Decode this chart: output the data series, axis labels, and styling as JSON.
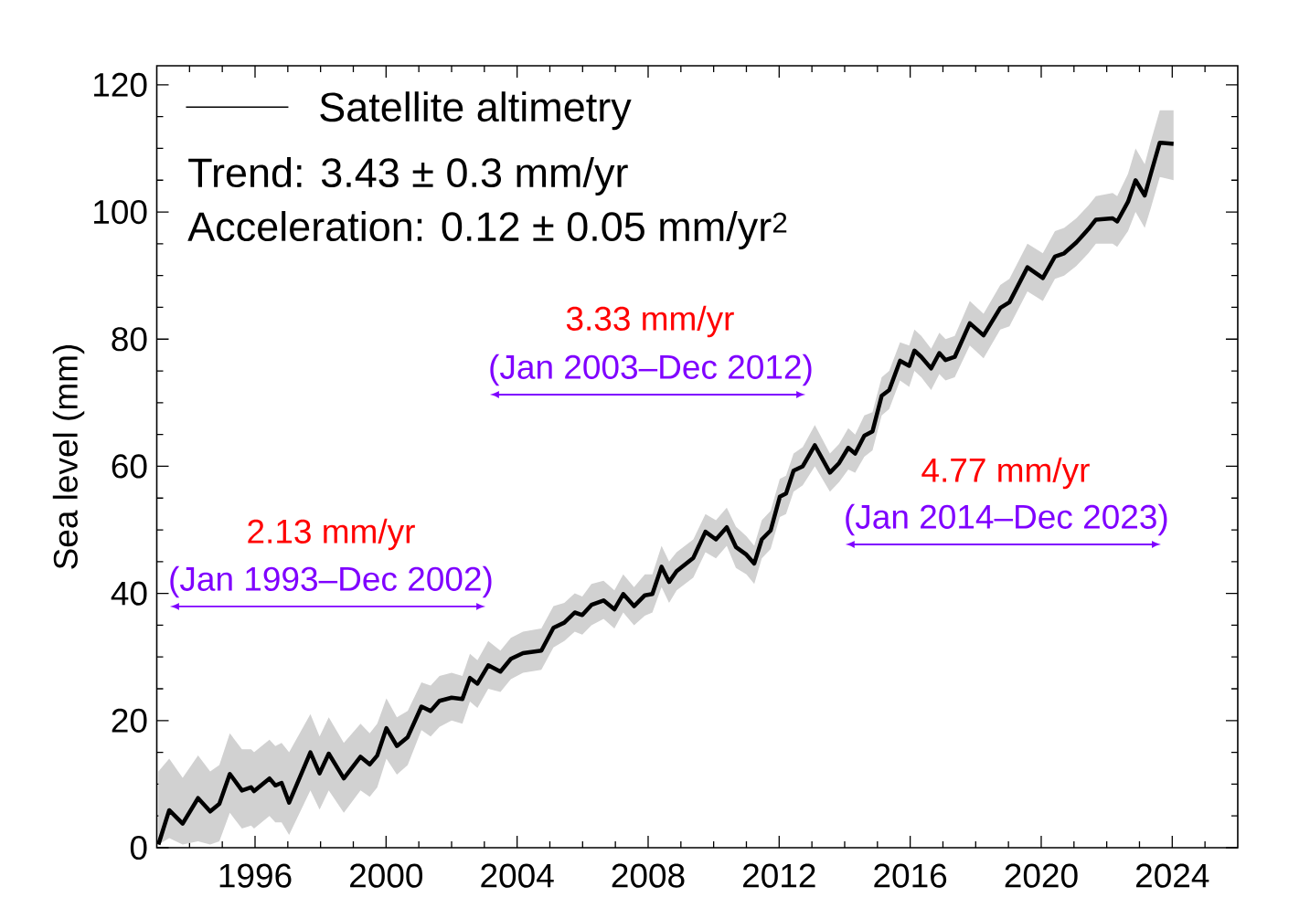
{
  "chart_data": {
    "type": "line",
    "ylabel": "Sea level (mm)",
    "legend": "top left",
    "marker": "none",
    "line_style": "solid",
    "xlim": [
      1993,
      2026
    ],
    "ylim": [
      0,
      123
    ],
    "xticks": [
      {
        "value": 1994,
        "label": null
      },
      {
        "value": 1995,
        "label": null
      },
      1996,
      {
        "value": 1997,
        "label": null
      },
      {
        "value": 1998,
        "label": null
      },
      {
        "value": 1999,
        "label": null
      },
      2000,
      {
        "value": 2001,
        "label": null
      },
      {
        "value": 2002,
        "label": null
      },
      {
        "value": 2003,
        "label": null
      },
      2004,
      {
        "value": 2005,
        "label": null
      },
      {
        "value": 2006,
        "label": null
      },
      {
        "value": 2007,
        "label": null
      },
      2008,
      {
        "value": 2009,
        "label": null
      },
      {
        "value": 2010,
        "label": null
      },
      {
        "value": 2011,
        "label": null
      },
      2012,
      {
        "value": 2013,
        "label": null
      },
      {
        "value": 2014,
        "label": null
      },
      {
        "value": 2015,
        "label": null
      },
      2016,
      {
        "value": 2017,
        "label": null
      },
      {
        "value": 2018,
        "label": null
      },
      {
        "value": 2019,
        "label": null
      },
      2020,
      {
        "value": 2021,
        "label": null
      },
      {
        "value": 2022,
        "label": null
      },
      {
        "value": 2023,
        "label": null
      },
      2024,
      {
        "value": 2025,
        "label": null
      }
    ],
    "yticks": [
      0,
      {
        "value": 5,
        "label": null
      },
      {
        "value": 10,
        "label": null
      },
      {
        "value": 15,
        "label": null
      },
      20,
      {
        "value": 25,
        "label": null
      },
      {
        "value": 30,
        "label": null
      },
      {
        "value": 35,
        "label": null
      },
      40,
      {
        "value": 45,
        "label": null
      },
      {
        "value": 50,
        "label": null
      },
      {
        "value": 55,
        "label": null
      },
      60,
      {
        "value": 65,
        "label": null
      },
      {
        "value": 70,
        "label": null
      },
      {
        "value": 75,
        "label": null
      },
      80,
      {
        "value": 85,
        "label": null
      },
      {
        "value": 90,
        "label": null
      },
      {
        "value": 95,
        "label": null
      },
      100,
      {
        "value": 105,
        "label": null
      },
      {
        "value": 110,
        "label": null
      },
      {
        "value": 115,
        "label": null
      },
      120
    ],
    "x": [
      1993.05,
      1993.38,
      1993.79,
      1994.26,
      1994.63,
      1994.91,
      1995.23,
      1995.6,
      1995.88,
      1995.97,
      1996.44,
      1996.62,
      1996.81,
      1997.04,
      1997.69,
      1997.97,
      1998.25,
      1998.71,
      1999.22,
      1999.5,
      1999.73,
      2000.01,
      2000.33,
      2000.66,
      2001.08,
      2001.36,
      2001.63,
      2002.0,
      2002.33,
      2002.56,
      2002.79,
      2003.12,
      2003.49,
      2003.81,
      2004.18,
      2004.74,
      2005.11,
      2005.44,
      2005.76,
      2005.99,
      2006.27,
      2006.64,
      2006.97,
      2007.24,
      2007.57,
      2007.9,
      2008.13,
      2008.41,
      2008.64,
      2008.87,
      2009.38,
      2009.75,
      2010.07,
      2010.4,
      2010.68,
      2011.0,
      2011.24,
      2011.47,
      2011.74,
      2012.02,
      2012.21,
      2012.44,
      2012.72,
      2013.09,
      2013.55,
      2013.83,
      2014.11,
      2014.32,
      2014.6,
      2014.85,
      2015.13,
      2015.36,
      2015.69,
      2015.97,
      2016.13,
      2016.34,
      2016.64,
      2016.89,
      2017.08,
      2017.36,
      2017.82,
      2018.24,
      2018.75,
      2019.03,
      2019.58,
      2020.05,
      2020.42,
      2020.7,
      2021.07,
      2021.44,
      2021.67,
      2022.18,
      2022.32,
      2022.65,
      2022.88,
      2023.16,
      2023.34,
      2023.62,
      2024.04
    ],
    "series": [
      {
        "name": "Satellite altimetry",
        "color": "#000000",
        "values": [
          0.5,
          5.9,
          3.8,
          7.8,
          5.7,
          6.9,
          11.6,
          9.0,
          9.5,
          8.9,
          10.9,
          9.8,
          10.2,
          7.1,
          15.0,
          11.7,
          14.8,
          10.9,
          14.3,
          13.1,
          14.5,
          18.8,
          16.0,
          17.4,
          22.2,
          21.5,
          23.1,
          23.6,
          23.4,
          26.7,
          25.8,
          28.7,
          27.7,
          29.7,
          30.6,
          31.0,
          34.6,
          35.4,
          37.0,
          36.6,
          38.2,
          38.9,
          37.5,
          39.9,
          38.0,
          39.7,
          39.9,
          44.2,
          41.8,
          43.5,
          45.6,
          49.7,
          48.5,
          50.4,
          47.3,
          46.1,
          44.7,
          48.5,
          49.9,
          55.2,
          55.7,
          59.3,
          60.0,
          63.3,
          59.0,
          60.5,
          62.9,
          62.0,
          64.8,
          65.5,
          71.1,
          72.0,
          76.6,
          75.8,
          78.2,
          77.2,
          75.4,
          77.8,
          76.7,
          77.2,
          82.5,
          80.6,
          84.9,
          85.8,
          91.3,
          89.6,
          93.0,
          93.5,
          95.2,
          97.3,
          98.8,
          99.0,
          98.5,
          101.6,
          105.0,
          102.6,
          105.9,
          110.9,
          110.7
        ],
        "upper": [
          12,
          14,
          11,
          14.5,
          12,
          13,
          18,
          15.5,
          15.5,
          15,
          17,
          16,
          16.5,
          15,
          21,
          17.5,
          20.5,
          16.5,
          19.5,
          18,
          19.5,
          23.5,
          20.5,
          21.5,
          26,
          25.5,
          27,
          27.5,
          27,
          30.5,
          29.5,
          32.5,
          31,
          33,
          34,
          34.5,
          38,
          38.5,
          40,
          39.5,
          41.5,
          42,
          40.5,
          43,
          41,
          43,
          43,
          47.5,
          45,
          46.5,
          48.5,
          52.5,
          51.5,
          53.5,
          50.5,
          49,
          47.5,
          51.5,
          53,
          58,
          58.5,
          62,
          63,
          66.5,
          62,
          63.5,
          66,
          65,
          68,
          68.5,
          74,
          75,
          79.5,
          79,
          81.5,
          80.5,
          78.5,
          81,
          80,
          80.5,
          86,
          84,
          88.5,
          89.5,
          95,
          93.5,
          97,
          97.5,
          99,
          101,
          102.5,
          103,
          102.5,
          106,
          110,
          107.5,
          111,
          116,
          116
        ],
        "lower": [
          0.5,
          1.5,
          0.5,
          1,
          0.5,
          1,
          5.5,
          3,
          3.5,
          3,
          5,
          4,
          4,
          2,
          9,
          6,
          9,
          5.5,
          9,
          8,
          9.5,
          14,
          11.5,
          13,
          18.5,
          17.5,
          19,
          20,
          19.5,
          23,
          22,
          25,
          24.5,
          26.5,
          27.5,
          28,
          31.5,
          32.5,
          34,
          33.5,
          35,
          36,
          34.5,
          37,
          35,
          36.5,
          37,
          41,
          38.5,
          40.5,
          42.5,
          46.5,
          45.5,
          47.5,
          44,
          43,
          41.5,
          45.5,
          47,
          52,
          52.5,
          56,
          57,
          60,
          56,
          57.5,
          59.5,
          59,
          61.5,
          62.5,
          68,
          69,
          73.5,
          72.5,
          75,
          74,
          72,
          74.5,
          73.5,
          74,
          79,
          77,
          81.5,
          82,
          87.5,
          86,
          89.5,
          90,
          91.5,
          93.5,
          95,
          95,
          94.5,
          97,
          100,
          97.5,
          100.5,
          105.5,
          105
        ]
      }
    ],
    "annotations": [
      "Trend: 3.43 ± 0.3 mm/yr",
      "Acceleration: 0.12 ± 0.05 mm/yr$^{2}$",
      "2.13 mm/yr",
      "(Jan 1993–Dec 2002)",
      "3.33 mm/yr",
      "(Jan 2003–Dec 2012)",
      "4.77 mm/yr",
      "(Jan 2014–Dec 2023)"
    ]
  }
}
